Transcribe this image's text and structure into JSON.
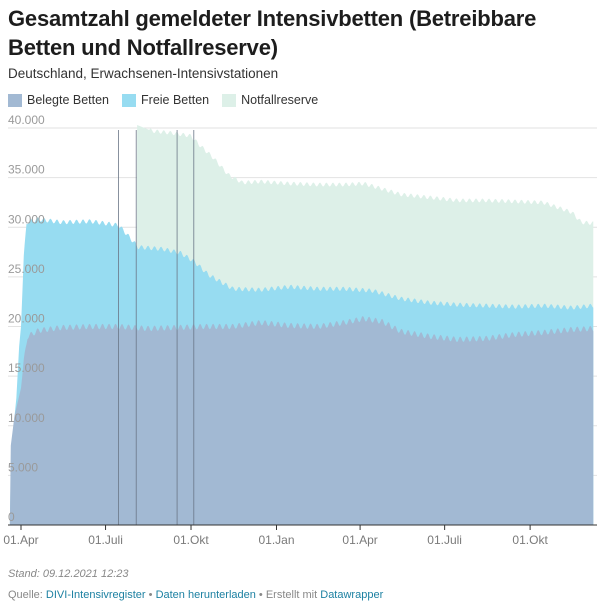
{
  "header": {
    "title": "Gesamtzahl gemeldeter Intensivbetten (Betreibbare Betten und Notfallreserve)",
    "subtitle": "Deutschland, Erwachsenen-Intensivstationen"
  },
  "legend": [
    {
      "label": "Belegte Betten",
      "color": "#a2b9d3"
    },
    {
      "label": "Freie Betten",
      "color": "#97dcf1"
    },
    {
      "label": "Notfallreserve",
      "color": "#ddf0e8"
    }
  ],
  "footer": {
    "stand": "Stand: 09.12.2021 12:23",
    "quelle_label": "Quelle:",
    "quelle_link": "DIVI-Intensivregister",
    "bullet": "•",
    "download_link": "Daten herunterladen",
    "created_label": "Erstellt mit",
    "created_link": "Datawrapper"
  },
  "chart_data": {
    "type": "area",
    "stacked": true,
    "x_unit": "date",
    "x_start": "2020-03-20",
    "x_end": "2021-12-08",
    "ylim": [
      0,
      40000
    ],
    "yticks": [
      0,
      5000,
      10000,
      15000,
      20000,
      25000,
      30000,
      35000,
      40000
    ],
    "ytick_labels": [
      "0",
      "5.000",
      "10.000",
      "15.000",
      "20.000",
      "25.000",
      "30.000",
      "35.000",
      "40.000"
    ],
    "xticks": [
      {
        "date": "2020-04-01",
        "label": "01.Apr"
      },
      {
        "date": "2020-07-01",
        "label": "01.Juli"
      },
      {
        "date": "2020-10-01",
        "label": "01.Okt"
      },
      {
        "date": "2021-01-01",
        "label": "01.Jan"
      },
      {
        "date": "2021-04-01",
        "label": "01.Apr"
      },
      {
        "date": "2021-07-01",
        "label": "01.Juli"
      },
      {
        "date": "2021-10-01",
        "label": "01.Okt"
      }
    ],
    "vlines": [
      "2020-07-15",
      "2020-08-03",
      "2020-09-16",
      "2020-10-04"
    ],
    "grid": true,
    "legend_position": "top-left",
    "series": [
      {
        "name": "Belegte Betten",
        "color": "#a2b9d3",
        "points": [
          [
            "2020-03-20",
            0
          ],
          [
            "2020-03-21",
            8000
          ],
          [
            "2020-03-25",
            11000
          ],
          [
            "2020-03-28",
            12200
          ],
          [
            "2020-04-01",
            13800
          ],
          [
            "2020-04-04",
            16500
          ],
          [
            "2020-04-08",
            19000
          ],
          [
            "2020-04-20",
            19600
          ],
          [
            "2020-05-15",
            19900
          ],
          [
            "2020-06-15",
            20000
          ],
          [
            "2020-07-15",
            20000
          ],
          [
            "2020-08-15",
            19800
          ],
          [
            "2020-09-15",
            19900
          ],
          [
            "2020-10-15",
            20000
          ],
          [
            "2020-11-15",
            20000
          ],
          [
            "2020-12-15",
            20400
          ],
          [
            "2021-01-15",
            20100
          ],
          [
            "2021-02-15",
            20000
          ],
          [
            "2021-03-15",
            20400
          ],
          [
            "2021-04-05",
            20800
          ],
          [
            "2021-04-25",
            20500
          ],
          [
            "2021-05-15",
            19500
          ],
          [
            "2021-06-15",
            19000
          ],
          [
            "2021-07-15",
            18700
          ],
          [
            "2021-08-15",
            18800
          ],
          [
            "2021-09-15",
            19200
          ],
          [
            "2021-10-15",
            19400
          ],
          [
            "2021-11-15",
            19700
          ],
          [
            "2021-12-08",
            19800
          ]
        ]
      },
      {
        "name": "Freie Betten",
        "color": "#97dcf1",
        "points": [
          [
            "2020-03-20",
            0
          ],
          [
            "2020-03-21",
            5000
          ],
          [
            "2020-03-24",
            10000
          ],
          [
            "2020-03-27",
            12800
          ],
          [
            "2020-03-30",
            18000
          ],
          [
            "2020-04-01",
            20000
          ],
          [
            "2020-04-04",
            27000
          ],
          [
            "2020-04-07",
            30500
          ],
          [
            "2020-04-20",
            30800
          ],
          [
            "2020-05-15",
            30500
          ],
          [
            "2020-06-15",
            30600
          ],
          [
            "2020-07-15",
            30200
          ],
          [
            "2020-07-22",
            29500
          ],
          [
            "2020-08-05",
            28000
          ],
          [
            "2020-09-01",
            27800
          ],
          [
            "2020-09-20",
            27400
          ],
          [
            "2020-10-05",
            26500
          ],
          [
            "2020-10-20",
            25200
          ],
          [
            "2020-11-15",
            23800
          ],
          [
            "2020-12-15",
            23700
          ],
          [
            "2021-01-15",
            24000
          ],
          [
            "2021-02-15",
            23800
          ],
          [
            "2021-03-15",
            23800
          ],
          [
            "2021-04-15",
            23600
          ],
          [
            "2021-05-15",
            22800
          ],
          [
            "2021-06-15",
            22400
          ],
          [
            "2021-07-15",
            22200
          ],
          [
            "2021-08-15",
            22100
          ],
          [
            "2021-09-15",
            22000
          ],
          [
            "2021-10-15",
            22100
          ],
          [
            "2021-11-15",
            21900
          ],
          [
            "2021-12-08",
            22100
          ]
        ]
      },
      {
        "name": "Notfallreserve",
        "color": "#ddf0e8",
        "points": [
          [
            "2020-08-03",
            0
          ],
          [
            "2020-08-04",
            40300
          ],
          [
            "2020-08-20",
            39700
          ],
          [
            "2020-09-10",
            39500
          ],
          [
            "2020-10-01",
            39200
          ],
          [
            "2020-10-10",
            38300
          ],
          [
            "2020-10-25",
            37000
          ],
          [
            "2020-11-10",
            35300
          ],
          [
            "2020-11-25",
            34500
          ],
          [
            "2020-12-15",
            34600
          ],
          [
            "2021-01-15",
            34400
          ],
          [
            "2021-02-15",
            34300
          ],
          [
            "2021-03-15",
            34300
          ],
          [
            "2021-04-05",
            34400
          ],
          [
            "2021-04-20",
            34000
          ],
          [
            "2021-05-15",
            33300
          ],
          [
            "2021-06-15",
            33000
          ],
          [
            "2021-07-15",
            32700
          ],
          [
            "2021-08-15",
            32700
          ],
          [
            "2021-09-15",
            32600
          ],
          [
            "2021-10-15",
            32500
          ],
          [
            "2021-11-15",
            31500
          ],
          [
            "2021-11-25",
            30500
          ],
          [
            "2021-12-08",
            30400
          ]
        ]
      }
    ]
  }
}
